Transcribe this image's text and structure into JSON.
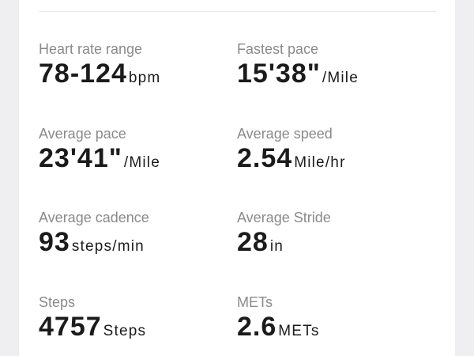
{
  "stats": [
    {
      "label": "Heart rate range",
      "value": "78-124",
      "unit": "bpm"
    },
    {
      "label": "Fastest pace",
      "value": "15'38\"",
      "unit": "/Mile"
    },
    {
      "label": "Average pace",
      "value": "23'41\"",
      "unit": "/Mile"
    },
    {
      "label": "Average speed",
      "value": "2.54",
      "unit": "Mile/hr"
    },
    {
      "label": "Average cadence",
      "value": "93",
      "unit": "steps/min"
    },
    {
      "label": "Average Stride",
      "value": "28",
      "unit": "in"
    },
    {
      "label": "Steps",
      "value": "4757",
      "unit": "Steps"
    },
    {
      "label": "METs",
      "value": "2.6",
      "unit": "METs"
    }
  ],
  "colors": {
    "background": "#efeff1",
    "card": "#ffffff",
    "label": "#8a8a8a",
    "value": "#1b1b1b"
  }
}
